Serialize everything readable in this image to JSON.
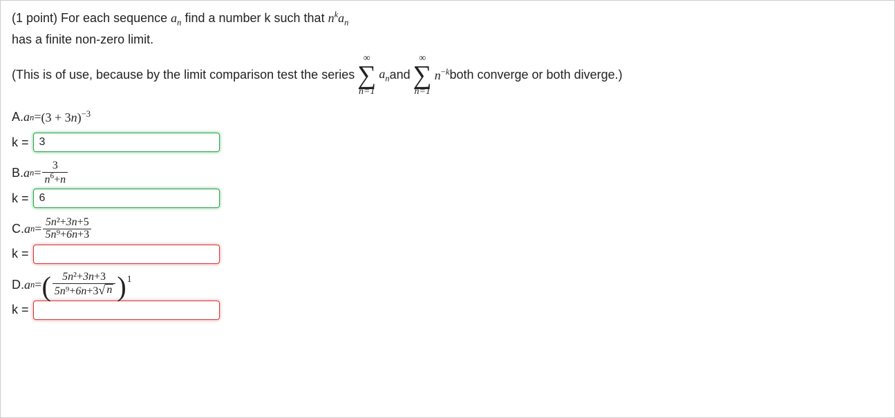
{
  "intro": {
    "points_prefix": "(1 point) ",
    "line1_a": "For each sequence ",
    "line1_b": " find a number k such that ",
    "line2": "has a finite non-zero limit."
  },
  "series": {
    "pre": "(This is of use, because by the limit comparison test the series ",
    "mid": " and ",
    "post": " both converge or both diverge.)"
  },
  "sum": {
    "top": "∞",
    "bottom": "n=1",
    "term1_var": "a",
    "term1_sub": "n",
    "term2_var": "n",
    "term2_exp_a": "−",
    "term2_exp_b": "k"
  },
  "labels": {
    "k_eq": "k ="
  },
  "A": {
    "label": "A. ",
    "eq": " = ",
    "expr_base": "(3 + 3",
    "expr_var": "n",
    "expr_close": ")",
    "expr_exp": "−3",
    "value": "3",
    "state": "correct"
  },
  "B": {
    "label": "B. ",
    "eq": " = ",
    "num": "3",
    "den_a": "n",
    "den_exp": "6",
    "den_plus": "+",
    "den_b": "n",
    "value": "6",
    "state": "correct"
  },
  "C": {
    "label": "C. ",
    "eq": " = ",
    "num": "5n²+3n+5",
    "den": "5n⁹+6n+3",
    "value": "",
    "state": "wrong"
  },
  "D": {
    "label": "D. ",
    "eq": " = ",
    "num": "5n²+3n+3",
    "den_a": "5n⁹+6n+3",
    "den_rad": "n",
    "exp": "1",
    "value": "",
    "state": "wrong"
  }
}
